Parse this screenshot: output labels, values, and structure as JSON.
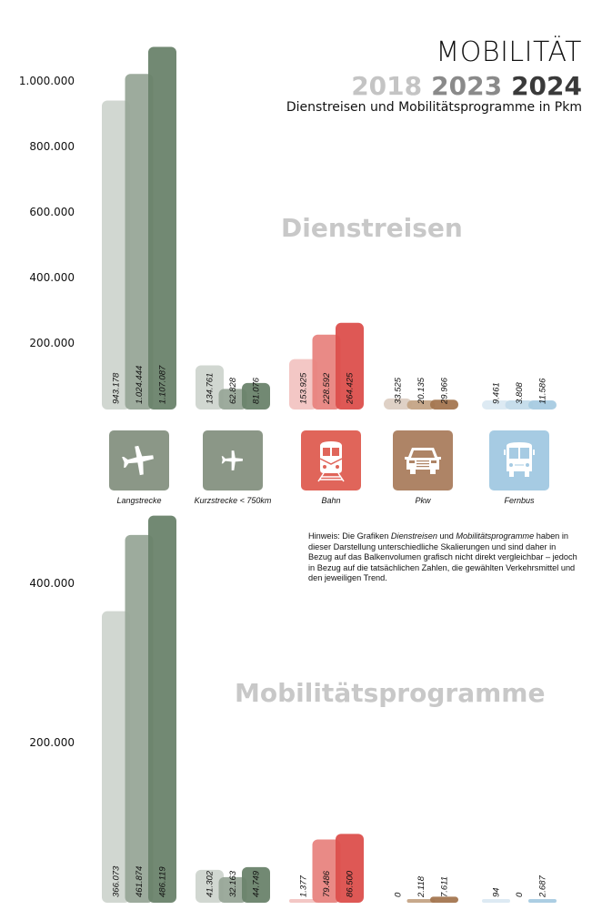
{
  "header": {
    "title": "MOBILITÄT",
    "years": [
      {
        "label": "2018",
        "color": "#c4c4c4"
      },
      {
        "label": "2023",
        "color": "#8a8a8a"
      },
      {
        "label": "2024",
        "color": "#3a3a3a"
      }
    ],
    "subtitle": "Dienstreisen und Mobilitätsprogramme in Pkm"
  },
  "note": {
    "prefix": "Hinweis: Die Grafiken ",
    "em1": "Dienstreisen",
    "mid": " und ",
    "em2": "Mobilitätsprogramme",
    "rest": " haben in dieser Darstellung unterschiedliche Skalierungen und sind daher in Bezug auf das Balkenvolumen grafisch nicht direkt vergleichbar – jedoch in Bezug auf die tatsächlichen Zahlen, die gewählten Verkehrsmittel und den jeweiligen Trend."
  },
  "modes": [
    {
      "label": "Langstrecke",
      "icon": "airplane-large-icon",
      "icon_color": "#8b9787",
      "colors": [
        "#cfd5cf",
        "#98a698",
        "#6a836c"
      ]
    },
    {
      "label": "Kurzstrecke < 750km",
      "icon": "airplane-small-icon",
      "icon_color": "#8b9787",
      "colors": [
        "#cfd5cf",
        "#98a698",
        "#6a836c"
      ]
    },
    {
      "label": "Bahn",
      "icon": "train-icon",
      "icon_color": "#e0655a",
      "colors": [
        "#f2c4c2",
        "#e88480",
        "#dc4f4c"
      ]
    },
    {
      "label": "Pkw",
      "icon": "car-icon",
      "icon_color": "#ae8466",
      "colors": [
        "#ddcfc3",
        "#c4a486",
        "#a47650"
      ]
    },
    {
      "label": "Fernbus",
      "icon": "bus-icon",
      "icon_color": "#a6cbe3",
      "colors": [
        "#dbe9f2",
        "#c3dbea",
        "#a8cbe2"
      ]
    }
  ],
  "chart_data": [
    {
      "type": "bar",
      "title": "Dienstreisen",
      "xlabel": "",
      "ylabel": "Pkm",
      "categories": [
        "Langstrecke",
        "Kurzstrecke < 750km",
        "Bahn",
        "Pkw",
        "Fernbus"
      ],
      "series": [
        {
          "name": "2018",
          "values": [
            943178,
            134761,
            153925,
            33525,
            9461
          ],
          "labels": [
            "943.178",
            "134.761",
            "153.925",
            "33.525",
            "9.461"
          ]
        },
        {
          "name": "2023",
          "values": [
            1024444,
            62828,
            228592,
            20135,
            3808
          ],
          "labels": [
            "1.024.444",
            "62.828",
            "228.592",
            "20.135",
            "3.808"
          ]
        },
        {
          "name": "2024",
          "values": [
            1107087,
            81076,
            264425,
            29966,
            11586
          ],
          "labels": [
            "1.107.087",
            "81.076",
            "264.425",
            "29.966",
            "11.586"
          ]
        }
      ],
      "yticks": [
        200000,
        400000,
        600000,
        800000,
        1000000
      ],
      "ytick_labels": [
        "200.000",
        "400.000",
        "600.000",
        "800.000",
        "1.000.000"
      ],
      "ylim": [
        0,
        1150000
      ],
      "grid": false,
      "legend": "top-right"
    },
    {
      "type": "bar",
      "title": "Mobilitätsprogramme",
      "xlabel": "",
      "ylabel": "Pkm",
      "categories": [
        "Langstrecke",
        "Kurzstrecke < 750km",
        "Bahn",
        "Pkw",
        "Fernbus"
      ],
      "series": [
        {
          "name": "2018",
          "values": [
            366073,
            41302,
            1377,
            0,
            94
          ],
          "labels": [
            "366.073",
            "41.302",
            "1.377",
            "0",
            "94"
          ]
        },
        {
          "name": "2023",
          "values": [
            461874,
            32163,
            79486,
            2118,
            0
          ],
          "labels": [
            "461.874",
            "32.163",
            "79.486",
            "2.118",
            "0"
          ]
        },
        {
          "name": "2024",
          "values": [
            486119,
            44749,
            86500,
            7611,
            2687
          ],
          "labels": [
            "486.119",
            "44.749",
            "86.500",
            "7.611",
            "2.687"
          ]
        }
      ],
      "yticks": [
        200000,
        400000
      ],
      "ytick_labels": [
        "200.000",
        "400.000"
      ],
      "ylim": [
        0,
        490000
      ],
      "grid": false,
      "legend": "top-right"
    }
  ]
}
